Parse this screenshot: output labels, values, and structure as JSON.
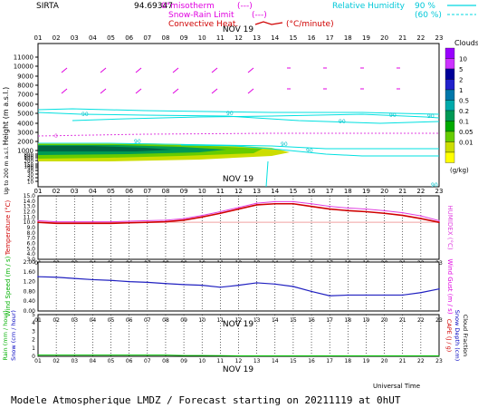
{
  "header": {
    "site": "SIRTA",
    "station_id": "94.69347",
    "legend_isotherm": "0°misotherm",
    "legend_isotherm_dash": "(---)",
    "legend_snow_rain": "Snow-Rain Limit",
    "legend_snow_rain_dash": "(---)",
    "legend_convective": "Convective Heat.",
    "legend_convective_unit": "(°C/minute)",
    "legend_rh": "Relative Humidity",
    "legend_rh_90": "90 %",
    "legend_rh_60": "(60 %)"
  },
  "hours": [
    "01",
    "02",
    "03",
    "04",
    "05",
    "06",
    "07",
    "08",
    "09",
    "10",
    "11",
    "12",
    "13",
    "14",
    "15",
    "16",
    "17",
    "18",
    "19",
    "20",
    "21",
    "22",
    "23"
  ],
  "date_label": "NOV 19",
  "footer": {
    "xlabel": "Universal Time",
    "title": "Modele Atmospherique LMDZ / Forecast starting on 20211119 at 0hUT"
  },
  "colors": {
    "temperature": "#d00000",
    "humidex": "#e040e0",
    "wind": "#2020c0",
    "rh": "#00e0e0",
    "rain": "#00c000",
    "axis_left_label": "#d00000"
  },
  "chart_data": [
    {
      "type": "heatmap",
      "panel": "clouds",
      "ylabel": "Height (m a.s.l.)",
      "ylabel_low": "Up to 200 m a.s.l.",
      "y_ticks": [
        "11000",
        "10000",
        "9000",
        "8000",
        "7000",
        "6000",
        "5000",
        "4000",
        "3000",
        "2000",
        "1000",
        "800",
        "600",
        "400",
        "200",
        "150",
        "100",
        "50",
        "40",
        "30",
        "20",
        "10"
      ],
      "colorbar_title": "Clouds",
      "colorbar_unit": "(g/kg)",
      "colorbar_labels": [
        "10",
        "5",
        "2",
        "1",
        "0.5",
        "0.2",
        "0.1",
        "0.05",
        "0.01"
      ],
      "colorbar_colors": [
        "#9900ff",
        "#cc33ff",
        "#000099",
        "#2222cc",
        "#0077aa",
        "#00aaaa",
        "#009955",
        "#00aa00",
        "#66cc00",
        "#ccdd00",
        "#ffff00"
      ],
      "rh_contour_labels": [
        "90",
        "90",
        "90",
        "90",
        "90",
        "90",
        "90",
        "90",
        "90"
      ],
      "isotherm_label": "0"
    },
    {
      "type": "line",
      "panel": "temperature",
      "ylabel": "Temperature (°C)",
      "y2label": "HUMIDEX (°C)",
      "y_ticks": [
        "15.0",
        "14.0",
        "13.0",
        "12.0",
        "11.0",
        "10.0",
        "9.0",
        "8.0",
        "7.0",
        "6.0",
        "5.0",
        "4.0",
        "3.0"
      ],
      "ylim": [
        3,
        15
      ],
      "series": [
        {
          "name": "Temperature",
          "values": [
            10.0,
            9.8,
            9.8,
            9.8,
            9.8,
            9.9,
            10.0,
            10.1,
            10.4,
            11.0,
            11.7,
            12.5,
            13.3,
            13.5,
            13.5,
            13.0,
            12.5,
            12.2,
            12.0,
            11.7,
            11.3,
            10.7,
            10.0
          ]
        },
        {
          "name": "HUMIDEX",
          "values": [
            10.3,
            10.1,
            10.1,
            10.1,
            10.1,
            10.2,
            10.3,
            10.4,
            10.7,
            11.3,
            12.0,
            12.8,
            13.6,
            13.9,
            13.9,
            13.5,
            13.0,
            12.7,
            12.5,
            12.2,
            11.8,
            11.2,
            10.3
          ]
        }
      ]
    },
    {
      "type": "line",
      "panel": "wind",
      "ylabel": "Wind Speed (m / s)",
      "y2label": "Wind Gust (m / s)",
      "y_ticks": [
        "2.00",
        "1.60",
        "1.20",
        "0.80",
        "0.40",
        "0.00"
      ],
      "ylim": [
        0,
        2
      ],
      "series": [
        {
          "name": "Wind Speed",
          "values": [
            1.4,
            1.38,
            1.33,
            1.28,
            1.25,
            1.2,
            1.17,
            1.12,
            1.08,
            1.05,
            0.97,
            1.05,
            1.15,
            1.1,
            1.0,
            0.8,
            0.62,
            0.65,
            0.65,
            0.65,
            0.65,
            0.75,
            0.9
          ]
        }
      ]
    },
    {
      "type": "line",
      "panel": "precipitation",
      "ylabel": "Rain (mm / hour)",
      "ylabel2": "Snow (cm / hour)",
      "y2label": "CAPE (J / g)",
      "y2label2": "Snow Depth (cm)",
      "y2label3": "Cloud Fraction",
      "y_ticks": [
        "0",
        "1",
        "2",
        "3",
        "4",
        "5"
      ],
      "ylim": [
        0,
        5
      ],
      "series": [
        {
          "name": "Rain",
          "values": [
            0.15,
            0.15,
            0.15,
            0.15,
            0.15,
            0.15,
            0.15,
            0.15,
            0.1,
            0.1,
            0.08,
            0.06,
            0.05,
            0.05,
            0.05,
            0.05,
            0.05,
            0.05,
            0.05,
            0.05,
            0.05,
            0.05,
            0.05
          ]
        }
      ]
    }
  ]
}
